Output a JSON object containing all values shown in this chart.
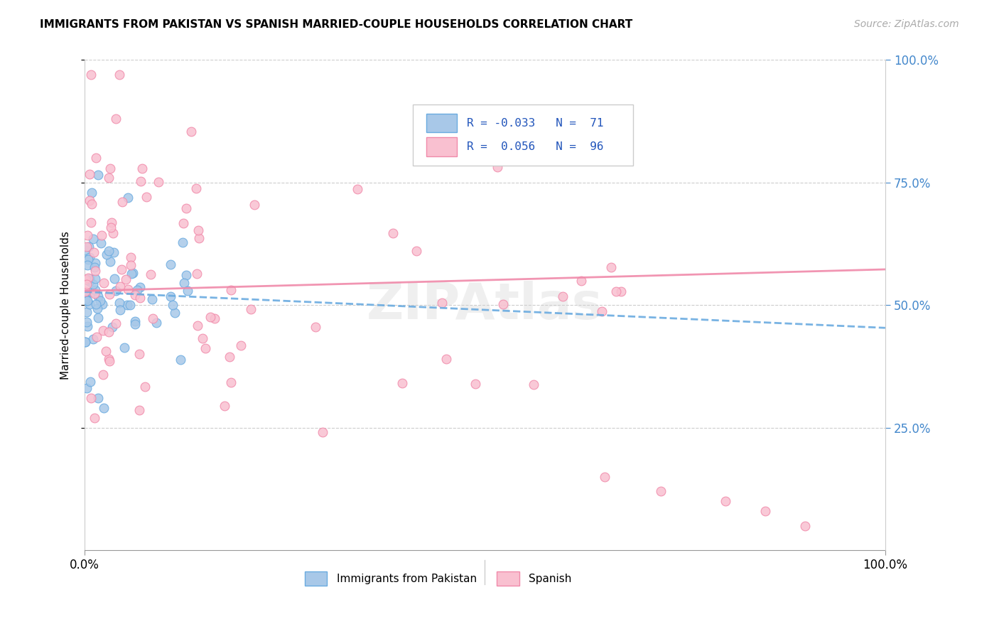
{
  "title": "IMMIGRANTS FROM PAKISTAN VS SPANISH MARRIED-COUPLE HOUSEHOLDS CORRELATION CHART",
  "source": "Source: ZipAtlas.com",
  "ylabel": "Married-couple Households",
  "color_blue_fill": "#a8c8e8",
  "color_blue_edge": "#6aabe0",
  "color_pink_fill": "#f9c0d0",
  "color_pink_edge": "#f08aaa",
  "color_blue_line": "#6aabe0",
  "color_pink_line": "#f08aaa",
  "watermark": "ZIPAtlas",
  "r_blue": -0.033,
  "n_blue": 71,
  "r_pink": 0.056,
  "n_pink": 96
}
